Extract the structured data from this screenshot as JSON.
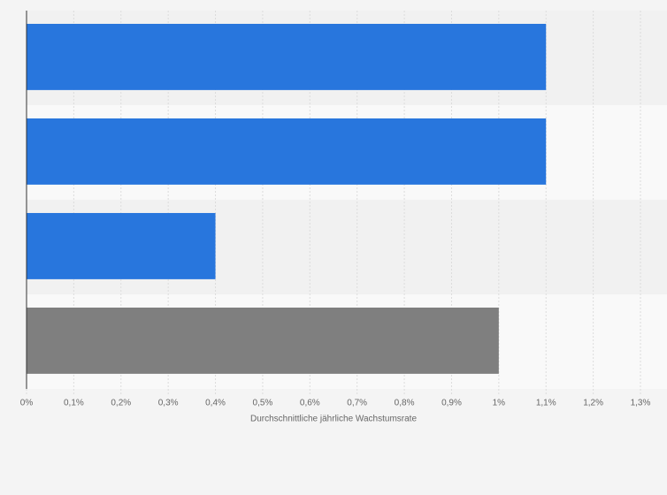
{
  "chart_data": {
    "type": "hbar",
    "categories": [
      null,
      null,
      null,
      null
    ],
    "values": [
      1.1,
      1.1,
      0.4,
      1.0
    ],
    "colors": [
      "#2876dd",
      "#2876dd",
      "#2876dd",
      "#7f7f7f"
    ],
    "x_label": "Durchschnittliche jährliche Wachstumsrate",
    "xlim": [
      0,
      1.3
    ],
    "xticks": [
      {
        "value": 0,
        "label": "0%"
      },
      {
        "value": 0.1,
        "label": "0,1%"
      },
      {
        "value": 0.2,
        "label": "0,2%"
      },
      {
        "value": 0.3,
        "label": "0,3%"
      },
      {
        "value": 0.4,
        "label": "0,4%"
      },
      {
        "value": 0.5,
        "label": "0,5%"
      },
      {
        "value": 0.6,
        "label": "0,6%"
      },
      {
        "value": 0.7,
        "label": "0,7%"
      },
      {
        "value": 0.8,
        "label": "0,8%"
      },
      {
        "value": 0.9,
        "label": "0,9%"
      },
      {
        "value": 1,
        "label": "1%"
      },
      {
        "value": 1.1,
        "label": "1,1%"
      },
      {
        "value": 1.2,
        "label": "1,2%"
      },
      {
        "value": 1.3,
        "label": "1,3%"
      }
    ],
    "grid": true
  }
}
